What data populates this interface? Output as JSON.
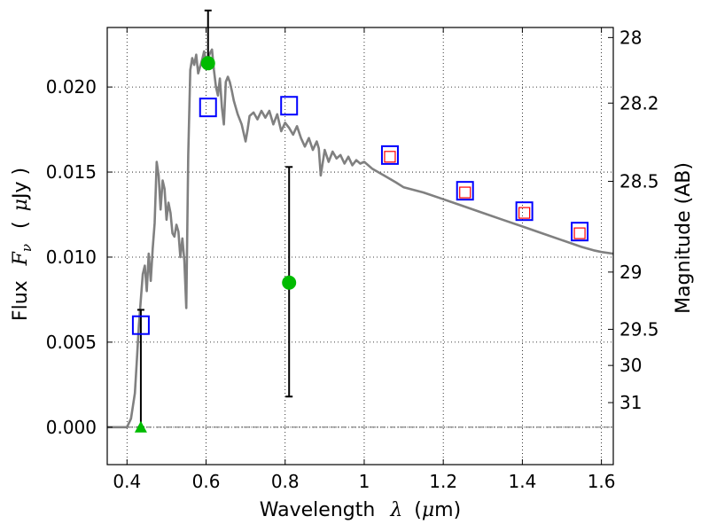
{
  "chart_data": {
    "type": "scatter",
    "xlabel": {
      "prefix": "Wavelength",
      "symbol": "λ",
      "unit_open": "(",
      "unit_mu": "μ",
      "unit_rest": "m)"
    },
    "ylabel": {
      "prefix": "Flux",
      "symbol": "F",
      "sub": "ν",
      "unit_open": "(",
      "unit_mu": "μ",
      "unit_rest": "Jy )"
    },
    "y2label": "Magnitude (AB)",
    "xlim": [
      0.35,
      1.63
    ],
    "ylim": [
      -0.0022,
      0.0235
    ],
    "x_ticks": [
      0.4,
      0.6,
      0.8,
      1.0,
      1.2,
      1.4,
      1.6
    ],
    "x_tick_labels": [
      "0.4",
      "0.6",
      "0.8",
      "1",
      "1.2",
      "1.4",
      "1.6"
    ],
    "y_ticks": [
      0.0,
      0.005,
      0.01,
      0.015,
      0.02
    ],
    "y_tick_labels": [
      "0.000",
      "0.005",
      "0.010",
      "0.015",
      "0.020"
    ],
    "mag_ticks": [
      28,
      28.2,
      28.5,
      29,
      29.5,
      30,
      31
    ],
    "mag_tick_labels": [
      "28",
      "28.2",
      "28.5",
      "29",
      "29.5",
      "30",
      "31"
    ],
    "grid": true,
    "zero_line": true,
    "colors": {
      "sed": "#808080",
      "model_box": "#0000ff",
      "inner_box": "#ff0000",
      "measured": "#00bb00",
      "error": "#000000"
    },
    "series": [
      {
        "kind": "model-spectrum",
        "x": [
          0.35,
          0.4,
          0.41,
          0.42,
          0.425,
          0.43,
          0.435,
          0.44,
          0.445,
          0.45,
          0.455,
          0.46,
          0.465,
          0.47,
          0.475,
          0.48,
          0.485,
          0.49,
          0.495,
          0.5,
          0.505,
          0.51,
          0.515,
          0.52,
          0.525,
          0.53,
          0.535,
          0.54,
          0.545,
          0.55,
          0.555,
          0.56,
          0.565,
          0.57,
          0.575,
          0.58,
          0.585,
          0.59,
          0.595,
          0.6,
          0.605,
          0.61,
          0.615,
          0.62,
          0.625,
          0.63,
          0.635,
          0.64,
          0.645,
          0.65,
          0.655,
          0.66,
          0.665,
          0.67,
          0.675,
          0.68,
          0.69,
          0.7,
          0.705,
          0.71,
          0.72,
          0.73,
          0.74,
          0.75,
          0.76,
          0.77,
          0.78,
          0.79,
          0.8,
          0.81,
          0.82,
          0.83,
          0.84,
          0.85,
          0.86,
          0.87,
          0.88,
          0.885,
          0.89,
          0.9,
          0.91,
          0.92,
          0.93,
          0.94,
          0.95,
          0.96,
          0.97,
          0.98,
          0.99,
          1.0,
          1.02,
          1.05,
          1.08,
          1.1,
          1.15,
          1.2,
          1.25,
          1.3,
          1.35,
          1.4,
          1.45,
          1.5,
          1.55,
          1.58,
          1.6,
          1.63
        ],
        "y": [
          0.0,
          0.0,
          0.0005,
          0.002,
          0.004,
          0.006,
          0.0075,
          0.009,
          0.0095,
          0.008,
          0.0102,
          0.0086,
          0.0105,
          0.012,
          0.0156,
          0.0148,
          0.0128,
          0.0145,
          0.014,
          0.0122,
          0.0132,
          0.0126,
          0.0114,
          0.0112,
          0.0119,
          0.0115,
          0.01,
          0.0111,
          0.0098,
          0.007,
          0.016,
          0.021,
          0.0217,
          0.0213,
          0.0219,
          0.0208,
          0.0212,
          0.0216,
          0.0221,
          0.0215,
          0.0217,
          0.022,
          0.0222,
          0.021,
          0.02,
          0.0195,
          0.0205,
          0.0188,
          0.0178,
          0.0203,
          0.0206,
          0.0203,
          0.0198,
          0.0192,
          0.0188,
          0.0184,
          0.0178,
          0.0168,
          0.0175,
          0.0183,
          0.0185,
          0.0181,
          0.0186,
          0.0182,
          0.0186,
          0.0178,
          0.0184,
          0.0174,
          0.0179,
          0.0176,
          0.0172,
          0.0177,
          0.017,
          0.0165,
          0.017,
          0.0163,
          0.0168,
          0.0164,
          0.0148,
          0.0163,
          0.0156,
          0.0162,
          0.0158,
          0.016,
          0.0155,
          0.0159,
          0.0154,
          0.0157,
          0.0155,
          0.0156,
          0.0152,
          0.0148,
          0.0144,
          0.0141,
          0.0138,
          0.0134,
          0.013,
          0.0126,
          0.0122,
          0.0118,
          0.0114,
          0.011,
          0.0106,
          0.0104,
          0.0103,
          0.0102
        ]
      },
      {
        "kind": "model-photometry-box",
        "x": [
          0.435,
          0.605,
          0.81,
          1.065,
          1.255,
          1.405,
          1.545
        ],
        "y": [
          0.006,
          0.0188,
          0.0189,
          0.016,
          0.0139,
          0.0127,
          0.0115
        ]
      },
      {
        "kind": "synthetic-photometry-inner",
        "x": [
          1.065,
          1.255,
          1.405,
          1.545
        ],
        "y": [
          0.0159,
          0.0138,
          0.0126,
          0.0114
        ]
      },
      {
        "kind": "observed-detection",
        "x": [
          0.605,
          0.81
        ],
        "y": [
          0.0214,
          0.0085
        ],
        "yerr_low": [
          0.0214,
          0.0018
        ],
        "yerr_high": [
          0.0245,
          0.0153
        ]
      },
      {
        "kind": "observed-upper-limit",
        "x": [
          0.435
        ],
        "y": [
          0.0
        ],
        "yerr_low": [
          0.0
        ],
        "yerr_high": [
          0.0069
        ]
      }
    ]
  }
}
